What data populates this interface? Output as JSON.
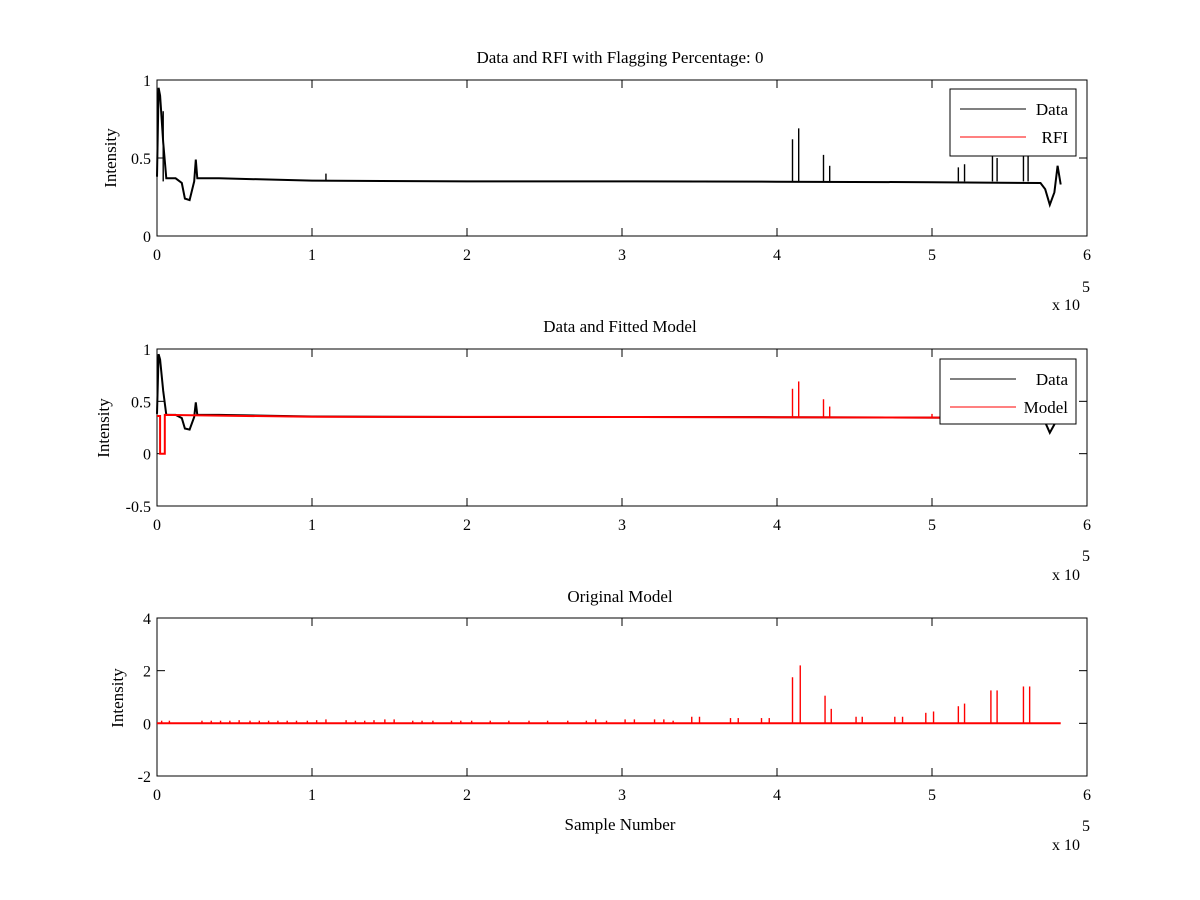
{
  "chart_data": [
    {
      "type": "line",
      "title": "Data and RFI with Flagging Percentage: 0",
      "xlabel": "",
      "ylabel": "Intensity",
      "xlim": [
        0,
        600000
      ],
      "ylim": [
        0,
        1
      ],
      "x_ticks": [
        0,
        1,
        2,
        3,
        4,
        5,
        6
      ],
      "y_ticks": [
        0,
        0.5,
        1
      ],
      "x_exponent_label": "x 10",
      "x_exponent_power": "5",
      "grid": false,
      "legend": {
        "placement": "top-right",
        "entries": [
          "Data",
          "RFI"
        ]
      },
      "series": [
        {
          "name": "Data",
          "color": "#000000",
          "points": [
            [
              0,
              0.38
            ],
            [
              1000,
              0.95
            ],
            [
              2000,
              0.9
            ],
            [
              4000,
              0.6
            ],
            [
              6000,
              0.37
            ],
            [
              12000,
              0.37
            ],
            [
              16000,
              0.34
            ],
            [
              18000,
              0.24
            ],
            [
              21000,
              0.23
            ],
            [
              24000,
              0.35
            ],
            [
              25000,
              0.49
            ],
            [
              26000,
              0.37
            ],
            [
              40000,
              0.37
            ],
            [
              100000,
              0.355
            ],
            [
              200000,
              0.35
            ],
            [
              300000,
              0.35
            ],
            [
              400000,
              0.348
            ],
            [
              500000,
              0.345
            ],
            [
              570000,
              0.34
            ],
            [
              573000,
              0.3
            ],
            [
              576000,
              0.2
            ],
            [
              579000,
              0.28
            ],
            [
              581000,
              0.45
            ],
            [
              583000,
              0.33
            ]
          ],
          "spikes": [
            [
              4000,
              0.8
            ],
            [
              109000,
              0.4
            ],
            [
              410000,
              0.62
            ],
            [
              414000,
              0.69
            ],
            [
              430000,
              0.52
            ],
            [
              434000,
              0.45
            ],
            [
              517000,
              0.44
            ],
            [
              521000,
              0.46
            ],
            [
              539000,
              0.56
            ],
            [
              542000,
              0.5
            ],
            [
              559000,
              0.54
            ],
            [
              562000,
              0.56
            ]
          ]
        },
        {
          "name": "RFI",
          "color": "#ff0000",
          "points": [],
          "spikes": []
        }
      ]
    },
    {
      "type": "line",
      "title": "Data and Fitted Model",
      "xlabel": "",
      "ylabel": "Intensity",
      "xlim": [
        0,
        600000
      ],
      "ylim": [
        -0.5,
        1
      ],
      "x_ticks": [
        0,
        1,
        2,
        3,
        4,
        5,
        6
      ],
      "y_ticks": [
        -0.5,
        0,
        0.5,
        1
      ],
      "x_exponent_label": "x 10",
      "x_exponent_power": "5",
      "grid": false,
      "legend": {
        "placement": "top-right",
        "entries": [
          "Data",
          "Model"
        ]
      },
      "series": [
        {
          "name": "Data",
          "color": "#000000",
          "points": [
            [
              0,
              0.38
            ],
            [
              1000,
              0.95
            ],
            [
              2000,
              0.9
            ],
            [
              4000,
              0.6
            ],
            [
              6000,
              0.37
            ],
            [
              12000,
              0.37
            ],
            [
              16000,
              0.34
            ],
            [
              18000,
              0.24
            ],
            [
              21000,
              0.23
            ],
            [
              24000,
              0.35
            ],
            [
              25000,
              0.49
            ],
            [
              26000,
              0.37
            ],
            [
              40000,
              0.37
            ],
            [
              100000,
              0.355
            ],
            [
              200000,
              0.35
            ],
            [
              300000,
              0.35
            ],
            [
              400000,
              0.348
            ],
            [
              500000,
              0.345
            ],
            [
              570000,
              0.34
            ],
            [
              573000,
              0.3
            ],
            [
              576000,
              0.2
            ],
            [
              579000,
              0.28
            ],
            [
              581000,
              0.45
            ],
            [
              583000,
              0.33
            ]
          ],
          "spikes": []
        },
        {
          "name": "Model",
          "color": "#ff0000",
          "points": [
            [
              0,
              0.36
            ],
            [
              2000,
              0.36
            ],
            [
              2000,
              0
            ],
            [
              5000,
              0
            ],
            [
              5000,
              0.37
            ],
            [
              100000,
              0.352
            ],
            [
              300000,
              0.35
            ],
            [
              500000,
              0.345
            ],
            [
              570000,
              0.342
            ]
          ],
          "spikes": [
            [
              410000,
              0.62
            ],
            [
              414000,
              0.69
            ],
            [
              430000,
              0.52
            ],
            [
              434000,
              0.45
            ],
            [
              500000,
              0.38
            ],
            [
              517000,
              0.38
            ],
            [
              539000,
              0.4
            ],
            [
              559000,
              0.4
            ]
          ]
        }
      ]
    },
    {
      "type": "line",
      "title": "Original Model",
      "xlabel": "Sample Number",
      "ylabel": "Intensity",
      "xlim": [
        0,
        600000
      ],
      "ylim": [
        -2,
        4
      ],
      "x_ticks": [
        0,
        1,
        2,
        3,
        4,
        5,
        6
      ],
      "y_ticks": [
        -2,
        0,
        2,
        4
      ],
      "x_exponent_label": "x 10",
      "x_exponent_power": "5",
      "grid": false,
      "legend": null,
      "series": [
        {
          "name": "",
          "color": "#ff0000",
          "points": [
            [
              0,
              0
            ],
            [
              583000,
              0
            ]
          ],
          "spikes": [
            [
              3000,
              0.1
            ],
            [
              8000,
              0.1
            ],
            [
              29000,
              0.1
            ],
            [
              35000,
              0.1
            ],
            [
              41000,
              0.1
            ],
            [
              47000,
              0.1
            ],
            [
              53000,
              0.12
            ],
            [
              60000,
              0.1
            ],
            [
              66000,
              0.1
            ],
            [
              72000,
              0.1
            ],
            [
              78000,
              0.1
            ],
            [
              84000,
              0.1
            ],
            [
              90000,
              0.1
            ],
            [
              97000,
              0.1
            ],
            [
              103000,
              0.12
            ],
            [
              109000,
              0.15
            ],
            [
              122000,
              0.12
            ],
            [
              128000,
              0.1
            ],
            [
              134000,
              0.1
            ],
            [
              140000,
              0.12
            ],
            [
              147000,
              0.15
            ],
            [
              153000,
              0.15
            ],
            [
              165000,
              0.1
            ],
            [
              171000,
              0.1
            ],
            [
              178000,
              0.1
            ],
            [
              190000,
              0.1
            ],
            [
              196000,
              0.1
            ],
            [
              203000,
              0.1
            ],
            [
              215000,
              0.1
            ],
            [
              227000,
              0.1
            ],
            [
              240000,
              0.1
            ],
            [
              252000,
              0.1
            ],
            [
              265000,
              0.1
            ],
            [
              277000,
              0.1
            ],
            [
              283000,
              0.15
            ],
            [
              290000,
              0.1
            ],
            [
              302000,
              0.15
            ],
            [
              308000,
              0.15
            ],
            [
              321000,
              0.15
            ],
            [
              327000,
              0.15
            ],
            [
              333000,
              0.1
            ],
            [
              345000,
              0.25
            ],
            [
              350000,
              0.25
            ],
            [
              370000,
              0.2
            ],
            [
              375000,
              0.2
            ],
            [
              390000,
              0.2
            ],
            [
              395000,
              0.2
            ],
            [
              410000,
              1.75
            ],
            [
              415000,
              2.2
            ],
            [
              431000,
              1.05
            ],
            [
              435000,
              0.55
            ],
            [
              451000,
              0.25
            ],
            [
              455000,
              0.25
            ],
            [
              476000,
              0.25
            ],
            [
              481000,
              0.25
            ],
            [
              496000,
              0.4
            ],
            [
              501000,
              0.45
            ],
            [
              517000,
              0.65
            ],
            [
              521000,
              0.75
            ],
            [
              538000,
              1.25
            ],
            [
              542000,
              1.25
            ],
            [
              559000,
              1.4
            ],
            [
              563000,
              1.4
            ]
          ]
        }
      ]
    }
  ]
}
